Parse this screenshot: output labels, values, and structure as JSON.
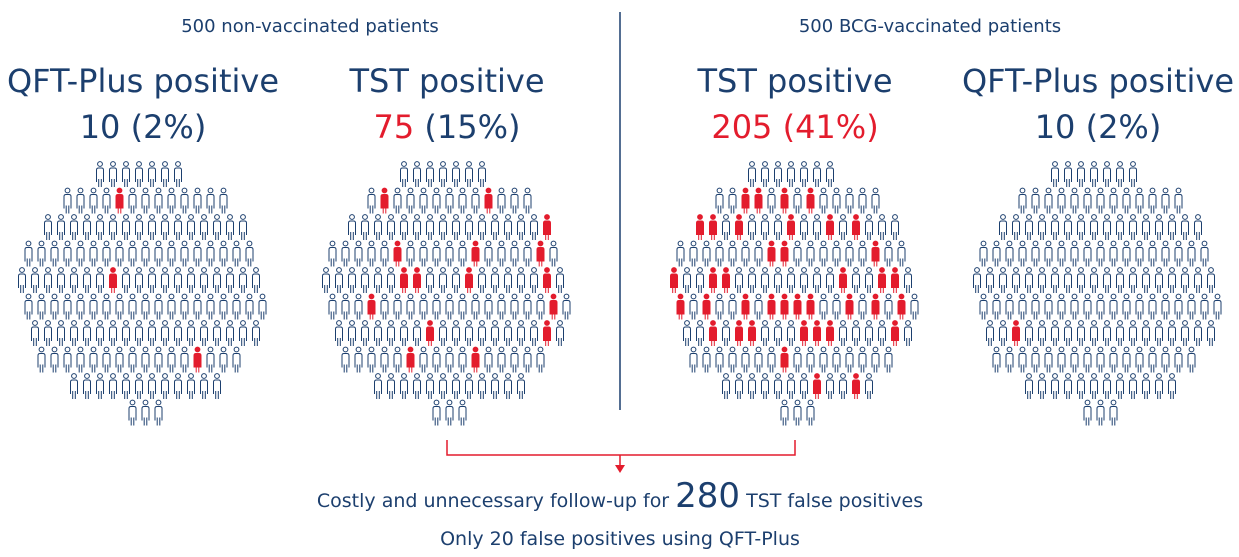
{
  "headers": [
    "500 non-vaccinated patients",
    "500 BCG-vaccinated patients"
  ],
  "panels": [
    {
      "title": "QFT-Plus positive",
      "count": "10",
      "percent": "(2%)",
      "count_color": "#1c3f6e",
      "percent_color": "#1c3f6e"
    },
    {
      "title": "TST positive",
      "count": "75",
      "percent": "(15%)",
      "count_color": "#e31c2d",
      "percent_color": "#1c3f6e"
    },
    {
      "title": "TST positive",
      "count": "205",
      "percent": "(41%)",
      "count_color": "#e31c2d",
      "percent_color": "#e31c2d"
    },
    {
      "title": "QFT-Plus positive",
      "count": "10",
      "percent": "(2%)",
      "count_color": "#1c3f6e",
      "percent_color": "#1c3f6e"
    }
  ],
  "footer": {
    "line1_start": "Costly and unnecessary follow-up for",
    "line1_number": "280",
    "line1_end": "TST false positives",
    "line2": "Only 20 false positives using QFT-Plus"
  }
}
